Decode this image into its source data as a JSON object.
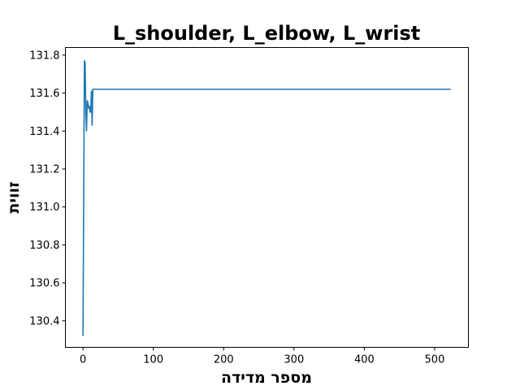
{
  "colors": {
    "series_line": "#1f77b4",
    "axes": "#000000",
    "background": "#ffffff"
  },
  "chart_data": {
    "type": "line",
    "title": "L_shoulder, L_elbow, L_wrist",
    "xlabel": "מספר מדידה",
    "ylabel": "זווית",
    "xlim": [
      -25,
      548
    ],
    "ylim": [
      130.26,
      131.84
    ],
    "xticks": [
      0,
      100,
      200,
      300,
      400,
      500
    ],
    "xtick_labels": [
      "0",
      "100",
      "200",
      "300",
      "400",
      "500"
    ],
    "yticks": [
      130.4,
      130.6,
      130.8,
      131.0,
      131.2,
      131.4,
      131.6,
      131.8
    ],
    "ytick_labels": [
      "130.4",
      "130.6",
      "130.8",
      "131.0",
      "131.2",
      "131.4",
      "131.6",
      "131.8"
    ],
    "grid": false,
    "legend": "none",
    "series": [
      {
        "color": "#1f77b4",
        "x": [
          0,
          2,
          3,
          4,
          5,
          6,
          7,
          8,
          9,
          10,
          11,
          12,
          13,
          14,
          15,
          20,
          100,
          200,
          300,
          400,
          500,
          523
        ],
        "y": [
          130.32,
          131.77,
          131.76,
          131.5,
          131.4,
          131.56,
          131.55,
          131.52,
          131.53,
          131.5,
          131.5,
          131.61,
          131.43,
          131.62,
          131.62,
          131.62,
          131.62,
          131.62,
          131.62,
          131.62,
          131.62,
          131.62
        ]
      }
    ]
  }
}
